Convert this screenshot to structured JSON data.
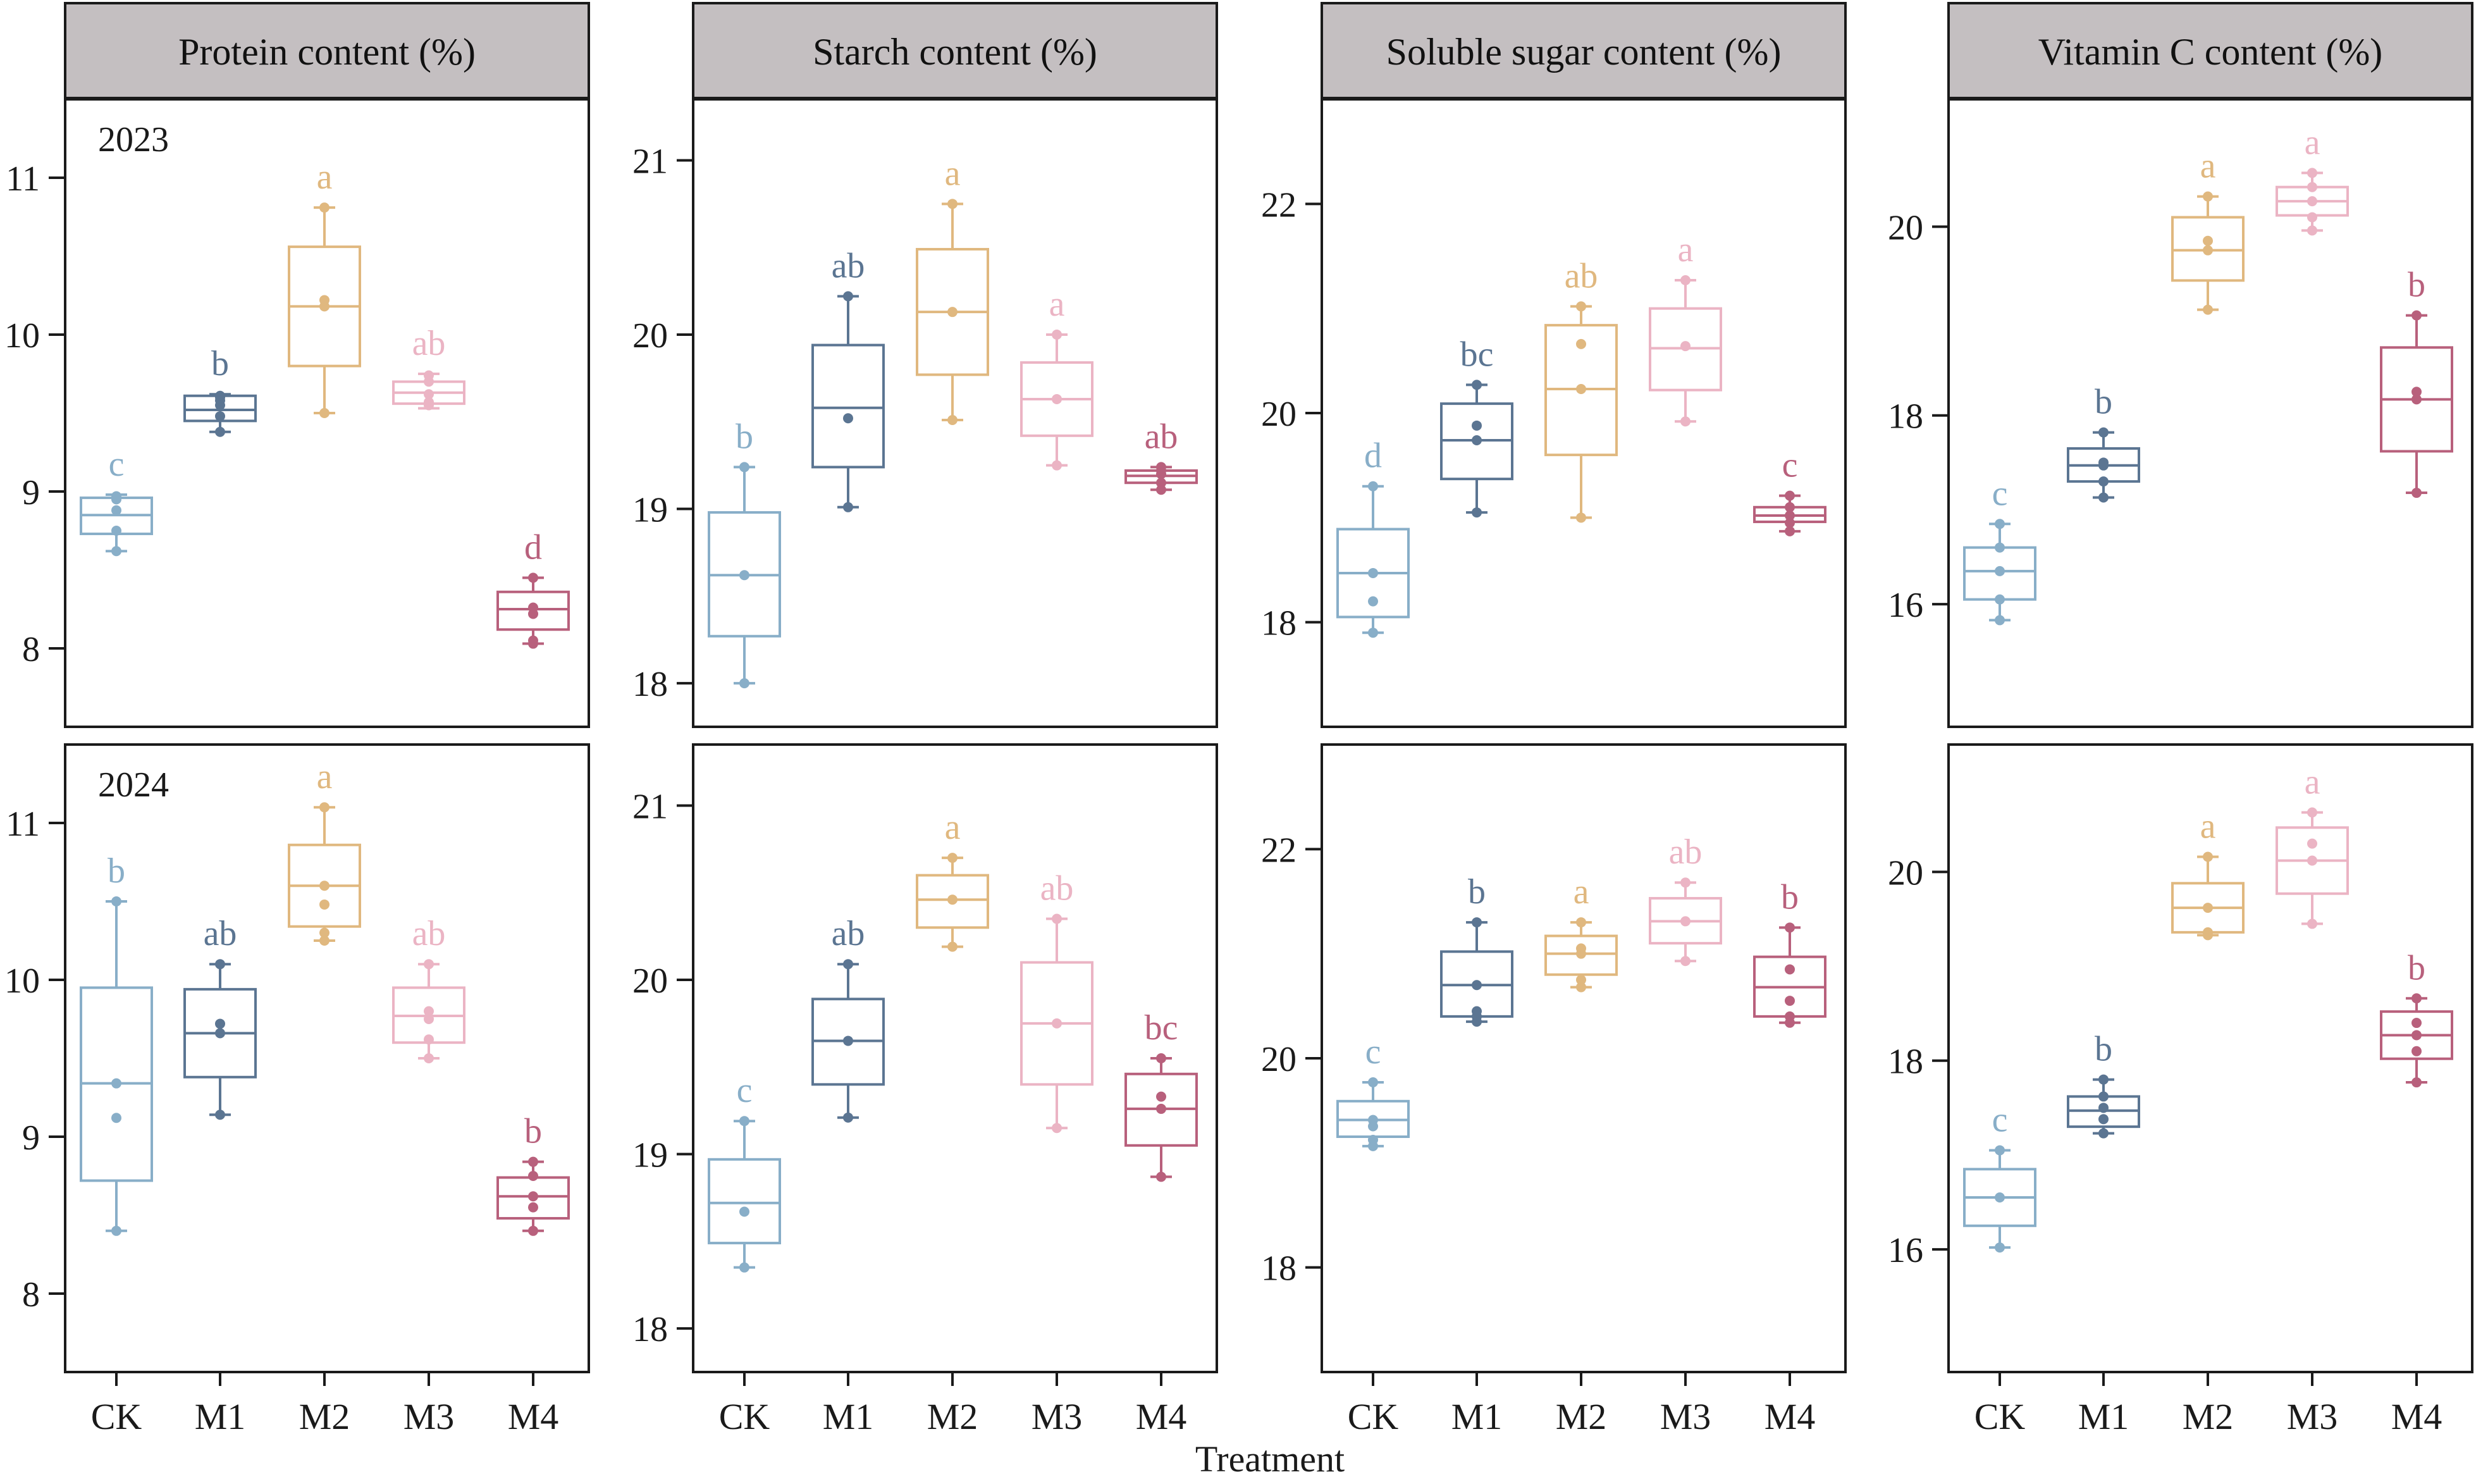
{
  "xlabel": "Treatment",
  "categories": [
    "CK",
    "M1",
    "M2",
    "M3",
    "M4"
  ],
  "colors": [
    "#88aec8",
    "#5b7592",
    "#e0b87f",
    "#ebb4c4",
    "#b8607c"
  ],
  "panel_header_color": "#c4bfc1",
  "chart_data": [
    {
      "type": "box",
      "title": "Protein content (%)",
      "row_label": "2023",
      "ylim": [
        7.5,
        11.5
      ],
      "yticks": [
        8,
        9,
        10,
        11
      ],
      "series": [
        {
          "q1": 8.73,
          "median": 8.85,
          "q3": 8.96,
          "whisker_low": 8.62,
          "whisker_high": 8.98,
          "points": [
            8.62,
            8.75,
            8.88,
            8.95,
            8.96,
            8.97
          ],
          "letter": "c"
        },
        {
          "q1": 9.45,
          "median": 9.52,
          "q3": 9.61,
          "whisker_low": 9.38,
          "whisker_high": 9.62,
          "points": [
            9.38,
            9.48,
            9.55,
            9.58,
            9.6,
            9.61
          ],
          "letter": "b"
        },
        {
          "q1": 9.8,
          "median": 10.18,
          "q3": 10.56,
          "whisker_low": 9.5,
          "whisker_high": 10.81,
          "points": [
            9.5,
            10.18,
            10.22,
            10.81
          ],
          "letter": "a"
        },
        {
          "q1": 9.56,
          "median": 9.63,
          "q3": 9.7,
          "whisker_low": 9.53,
          "whisker_high": 9.75,
          "points": [
            9.55,
            9.57,
            9.62,
            9.7,
            9.74
          ],
          "letter": "ab"
        },
        {
          "q1": 8.12,
          "median": 8.25,
          "q3": 8.36,
          "whisker_low": 8.03,
          "whisker_high": 8.45,
          "points": [
            8.03,
            8.05,
            8.22,
            8.26,
            8.45
          ],
          "letter": "d"
        }
      ]
    },
    {
      "type": "box",
      "title": "Starch content (%)",
      "row_label": "",
      "ylim": [
        17.75,
        21.35
      ],
      "yticks": [
        18,
        19,
        20,
        21
      ],
      "series": [
        {
          "q1": 18.27,
          "median": 18.62,
          "q3": 18.98,
          "whisker_low": 18.0,
          "whisker_high": 19.24,
          "points": [
            18.0,
            18.62,
            19.24
          ],
          "letter": "b"
        },
        {
          "q1": 19.24,
          "median": 19.58,
          "q3": 19.94,
          "whisker_low": 19.01,
          "whisker_high": 20.22,
          "points": [
            19.01,
            19.52,
            20.22
          ],
          "letter": "ab"
        },
        {
          "q1": 19.77,
          "median": 20.13,
          "q3": 20.49,
          "whisker_low": 19.51,
          "whisker_high": 20.75,
          "points": [
            19.51,
            20.13,
            20.75
          ],
          "letter": "a"
        },
        {
          "q1": 19.42,
          "median": 19.63,
          "q3": 19.84,
          "whisker_low": 19.25,
          "whisker_high": 20.0,
          "points": [
            19.25,
            19.63,
            20.0
          ],
          "letter": "a"
        },
        {
          "q1": 19.15,
          "median": 19.19,
          "q3": 19.22,
          "whisker_low": 19.11,
          "whisker_high": 19.24,
          "points": [
            19.11,
            19.15,
            19.2,
            19.22,
            19.24
          ],
          "letter": "ab"
        }
      ]
    },
    {
      "type": "box",
      "title": "Soluble sugar content (%)",
      "row_label": "",
      "ylim": [
        17.0,
        23.0
      ],
      "yticks": [
        18,
        20,
        22
      ],
      "series": [
        {
          "q1": 18.05,
          "median": 18.47,
          "q3": 18.89,
          "whisker_low": 17.9,
          "whisker_high": 19.3,
          "points": [
            17.9,
            18.2,
            18.47,
            19.3
          ],
          "letter": "d"
        },
        {
          "q1": 19.37,
          "median": 19.74,
          "q3": 20.09,
          "whisker_low": 19.05,
          "whisker_high": 20.27,
          "points": [
            19.05,
            19.74,
            19.88,
            20.27
          ],
          "letter": "bc"
        },
        {
          "q1": 19.6,
          "median": 20.23,
          "q3": 20.84,
          "whisker_low": 19.0,
          "whisker_high": 21.02,
          "points": [
            19.0,
            20.23,
            20.66,
            21.02
          ],
          "letter": "ab"
        },
        {
          "q1": 20.22,
          "median": 20.62,
          "q3": 21.0,
          "whisker_low": 19.92,
          "whisker_high": 21.27,
          "points": [
            19.92,
            20.64,
            21.27
          ],
          "letter": "a"
        },
        {
          "q1": 18.96,
          "median": 19.02,
          "q3": 19.1,
          "whisker_low": 18.87,
          "whisker_high": 19.21,
          "points": [
            18.87,
            18.95,
            19.02,
            19.1,
            19.21
          ],
          "letter": "c"
        }
      ]
    },
    {
      "type": "box",
      "title": "Vitamin C content (%)",
      "row_label": "",
      "ylim": [
        14.7,
        21.35
      ],
      "yticks": [
        16,
        18,
        20
      ],
      "series": [
        {
          "q1": 16.05,
          "median": 16.35,
          "q3": 16.6,
          "whisker_low": 15.83,
          "whisker_high": 16.85,
          "points": [
            15.83,
            16.05,
            16.35,
            16.6,
            16.85
          ],
          "letter": "c"
        },
        {
          "q1": 17.3,
          "median": 17.47,
          "q3": 17.65,
          "whisker_low": 17.13,
          "whisker_high": 17.82,
          "points": [
            17.13,
            17.3,
            17.47,
            17.5,
            17.82
          ],
          "letter": "b"
        },
        {
          "q1": 19.43,
          "median": 19.75,
          "q3": 20.1,
          "whisker_low": 19.12,
          "whisker_high": 20.32,
          "points": [
            19.12,
            19.75,
            19.85,
            20.32
          ],
          "letter": "a"
        },
        {
          "q1": 20.12,
          "median": 20.27,
          "q3": 20.42,
          "whisker_low": 19.96,
          "whisker_high": 20.57,
          "points": [
            19.96,
            20.1,
            20.27,
            20.42,
            20.57
          ],
          "letter": "a"
        },
        {
          "q1": 17.62,
          "median": 18.17,
          "q3": 18.72,
          "whisker_low": 17.18,
          "whisker_high": 19.06,
          "points": [
            17.18,
            18.17,
            18.25,
            19.06
          ],
          "letter": "b"
        }
      ]
    },
    {
      "type": "box",
      "title": "Protein content (%)",
      "row_label": "2024",
      "ylim": [
        7.5,
        11.5
      ],
      "yticks": [
        8,
        9,
        10,
        11
      ],
      "series": [
        {
          "q1": 8.72,
          "median": 9.34,
          "q3": 9.95,
          "whisker_low": 8.4,
          "whisker_high": 10.5,
          "points": [
            8.4,
            9.12,
            9.34,
            10.5
          ],
          "letter": "b"
        },
        {
          "q1": 9.38,
          "median": 9.66,
          "q3": 9.94,
          "whisker_low": 9.14,
          "whisker_high": 10.1,
          "points": [
            9.14,
            9.66,
            9.72,
            10.1
          ],
          "letter": "ab"
        },
        {
          "q1": 10.34,
          "median": 10.6,
          "q3": 10.86,
          "whisker_low": 10.25,
          "whisker_high": 11.1,
          "points": [
            10.25,
            10.3,
            10.48,
            10.6,
            11.1
          ],
          "letter": "a"
        },
        {
          "q1": 9.6,
          "median": 9.77,
          "q3": 9.95,
          "whisker_low": 9.5,
          "whisker_high": 10.1,
          "points": [
            9.5,
            9.62,
            9.75,
            9.8,
            10.1
          ],
          "letter": "ab"
        },
        {
          "q1": 8.48,
          "median": 8.62,
          "q3": 8.74,
          "whisker_low": 8.4,
          "whisker_high": 8.84,
          "points": [
            8.4,
            8.55,
            8.62,
            8.75,
            8.84
          ],
          "letter": "b"
        }
      ]
    },
    {
      "type": "box",
      "title": "Starch content (%)",
      "row_label": "",
      "ylim": [
        17.75,
        21.35
      ],
      "yticks": [
        18,
        19,
        20,
        21
      ],
      "series": [
        {
          "q1": 18.49,
          "median": 18.72,
          "q3": 18.97,
          "whisker_low": 18.35,
          "whisker_high": 19.19,
          "points": [
            18.35,
            18.67,
            19.19
          ],
          "letter": "c"
        },
        {
          "q1": 19.4,
          "median": 19.65,
          "q3": 19.89,
          "whisker_low": 19.21,
          "whisker_high": 20.09,
          "points": [
            19.21,
            19.65,
            20.09
          ],
          "letter": "ab"
        },
        {
          "q1": 20.3,
          "median": 20.46,
          "q3": 20.6,
          "whisker_low": 20.19,
          "whisker_high": 20.7,
          "points": [
            20.19,
            20.46,
            20.7
          ],
          "letter": "a"
        },
        {
          "q1": 19.4,
          "median": 19.75,
          "q3": 20.1,
          "whisker_low": 19.15,
          "whisker_high": 20.35,
          "points": [
            19.15,
            19.75,
            20.35
          ],
          "letter": "ab"
        },
        {
          "q1": 19.05,
          "median": 19.26,
          "q3": 19.46,
          "whisker_low": 18.87,
          "whisker_high": 19.55,
          "points": [
            18.87,
            19.26,
            19.33,
            19.55
          ],
          "letter": "bc"
        }
      ]
    },
    {
      "type": "box",
      "title": "Soluble sugar content (%)",
      "row_label": "",
      "ylim": [
        17.0,
        23.0
      ],
      "yticks": [
        18,
        20,
        22
      ],
      "series": [
        {
          "q1": 19.25,
          "median": 19.41,
          "q3": 19.59,
          "whisker_low": 19.16,
          "whisker_high": 19.77,
          "points": [
            19.16,
            19.22,
            19.35,
            19.41,
            19.77
          ],
          "letter": "c"
        },
        {
          "q1": 20.4,
          "median": 20.7,
          "q3": 21.02,
          "whisker_low": 20.35,
          "whisker_high": 21.3,
          "points": [
            20.35,
            20.4,
            20.45,
            20.7,
            21.3
          ],
          "letter": "b"
        },
        {
          "q1": 20.8,
          "median": 21.0,
          "q3": 21.17,
          "whisker_low": 20.68,
          "whisker_high": 21.3,
          "points": [
            20.68,
            20.75,
            21.0,
            21.05,
            21.3
          ],
          "letter": "a"
        },
        {
          "q1": 21.1,
          "median": 21.31,
          "q3": 21.53,
          "whisker_low": 20.93,
          "whisker_high": 21.68,
          "points": [
            20.93,
            21.31,
            21.68
          ],
          "letter": "ab"
        },
        {
          "q1": 20.4,
          "median": 20.68,
          "q3": 20.97,
          "whisker_low": 20.34,
          "whisker_high": 21.25,
          "points": [
            20.34,
            20.4,
            20.55,
            20.85,
            21.25
          ],
          "letter": "b"
        }
      ]
    },
    {
      "type": "box",
      "title": "Vitamin C content (%)",
      "row_label": "",
      "ylim": [
        14.7,
        21.35
      ],
      "yticks": [
        16,
        18,
        20
      ],
      "series": [
        {
          "q1": 16.25,
          "median": 16.55,
          "q3": 16.85,
          "whisker_low": 16.02,
          "whisker_high": 17.05,
          "points": [
            16.02,
            16.55,
            17.05
          ],
          "letter": "c"
        },
        {
          "q1": 17.3,
          "median": 17.47,
          "q3": 17.62,
          "whisker_low": 17.23,
          "whisker_high": 17.8,
          "points": [
            17.23,
            17.38,
            17.5,
            17.62,
            17.8
          ],
          "letter": "b"
        },
        {
          "q1": 19.36,
          "median": 19.62,
          "q3": 19.88,
          "whisker_low": 19.33,
          "whisker_high": 20.16,
          "points": [
            19.33,
            19.36,
            19.62,
            20.16
          ],
          "letter": "a"
        },
        {
          "q1": 19.77,
          "median": 20.12,
          "q3": 20.47,
          "whisker_low": 19.45,
          "whisker_high": 20.63,
          "points": [
            19.45,
            20.12,
            20.3,
            20.63
          ],
          "letter": "a"
        },
        {
          "q1": 18.02,
          "median": 18.27,
          "q3": 18.52,
          "whisker_low": 17.77,
          "whisker_high": 18.66,
          "points": [
            17.77,
            18.1,
            18.27,
            18.4,
            18.66
          ],
          "letter": "b"
        }
      ]
    }
  ]
}
